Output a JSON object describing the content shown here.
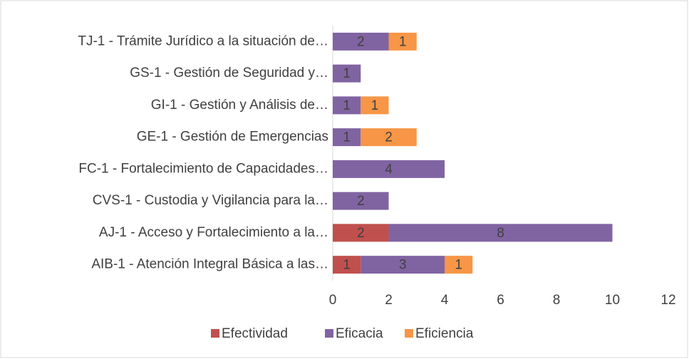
{
  "chart_data": {
    "type": "bar",
    "orientation": "horizontal",
    "stacked": true,
    "categories": [
      "TJ-1 - Trámite Jurídico a la situación de…",
      "GS-1 - Gestión de Seguridad y…",
      "GI-1 - Gestión y Análisis de…",
      "GE-1 - Gestión de Emergencias",
      "FC-1 - Fortalecimiento de Capacidades…",
      "CVS-1 - Custodia y Vigilancia para la…",
      "AJ-1 - Acceso y Fortalecimiento a la…",
      "AIB-1 - Atención Integral Básica a las…"
    ],
    "series": [
      {
        "name": "Efectividad",
        "color": "#c0504d",
        "values": [
          null,
          null,
          null,
          null,
          null,
          null,
          2,
          1
        ]
      },
      {
        "name": "Eficacia",
        "color": "#8064a2",
        "values": [
          2,
          1,
          1,
          1,
          4,
          2,
          8,
          3
        ]
      },
      {
        "name": "Eficiencia",
        "color": "#f79646",
        "values": [
          1,
          null,
          1,
          2,
          null,
          null,
          null,
          1
        ]
      }
    ],
    "xlim": [
      0,
      12
    ],
    "xticks": [
      0,
      2,
      4,
      6,
      8,
      10,
      12
    ],
    "legend": "bottom"
  }
}
